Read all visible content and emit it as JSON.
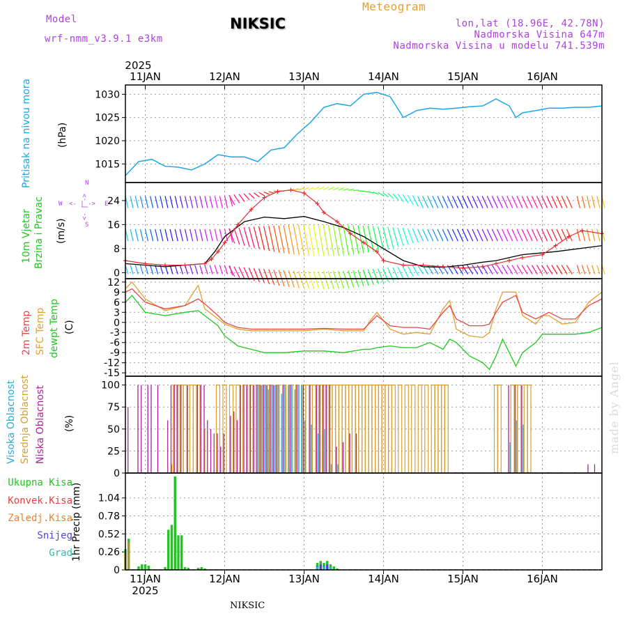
{
  "header": {
    "model_label": "Model",
    "model_name": "wrf-nmm_v3.9.1 e3km",
    "title": "NIKSIC",
    "meteogram_label": "Meteogram",
    "coords": "lon,lat (18.96E, 42.78N)",
    "elevation": "Nadmorska Visina 647m",
    "model_elevation": "Nadmorska Visina u modelu 741.539m"
  },
  "footer": {
    "station": "NIKSIC"
  },
  "signature": "made by Angel",
  "time_axis": {
    "year": "2025",
    "labels": [
      "11JAN",
      "12JAN",
      "13JAN",
      "14JAN",
      "15JAN",
      "16JAN"
    ],
    "start_hour": 0,
    "end_hour": 144
  },
  "colors": {
    "pressure": "#1aa7e6",
    "temp": "#e84545",
    "sfc_temp": "#e0a030",
    "dewpt": "#1ec81e",
    "cl_high": "#2aaad8",
    "cl_mid": "#d6a030",
    "cl_low": "#b0209a",
    "rain_total": "#22c422",
    "rain_conv": "#e84040",
    "rain_frozen": "#f08030",
    "snow": "#4848d8",
    "graupel": "#20c0b0",
    "gust": "#e03030",
    "wind": "#000000",
    "dir_label": "#b040e0"
  },
  "labels": {
    "pressure_panel": [
      "Pritisak na nivou mora"
    ],
    "pressure_unit": "(hPa)",
    "wind_panel": [
      "10m Vjetar",
      "Brzina i Pravac"
    ],
    "wind_unit": "(m/s)",
    "dir_compass": [
      "W",
      "<- | ->",
      "E",
      "N",
      "<- | ->",
      "S"
    ],
    "temp_panel": [
      "2m Temp",
      "SFC Temp",
      "dewpt Temp"
    ],
    "temp_unit": "(C)",
    "cloud_panel": [
      "Visoka Oblacnost",
      "Srednja Oblacnost",
      "Niska Oblacnost"
    ],
    "cloud_unit": "(%)",
    "precip_axis": "1hr Precip (mm)",
    "precip_legend": [
      "Ukupna Kisa",
      "Konvek.Kisa",
      "Zaledj.Kisa",
      "Snijeg",
      "Grad"
    ]
  },
  "chart_data": [
    {
      "type": "line",
      "title": "Pritisak na nivou mora",
      "ylabel": "(hPa)",
      "ylim": [
        1011,
        1032
      ],
      "yticks": [
        1015,
        1020,
        1025,
        1030
      ],
      "x": [
        0,
        2,
        4,
        8,
        12,
        16,
        20,
        24,
        28,
        32,
        36,
        40,
        44,
        48,
        52,
        56,
        60,
        64,
        68,
        72,
        76,
        80,
        84,
        88,
        92,
        96,
        100,
        104,
        108,
        112,
        116,
        118,
        120,
        124,
        128,
        132,
        136,
        140,
        144
      ],
      "values": [
        1012.5,
        1014,
        1015.5,
        1016,
        1014.5,
        1014.3,
        1013.7,
        1015,
        1017,
        1016.5,
        1016.5,
        1015.5,
        1018,
        1018.5,
        1021.5,
        1024,
        1027.2,
        1028,
        1027.5,
        1030,
        1030.4,
        1029.5,
        1025,
        1026.5,
        1027,
        1026.8,
        1027,
        1027.3,
        1027.5,
        1029,
        1027.5,
        1025,
        1026,
        1026.5,
        1027,
        1027,
        1027.2,
        1027.2,
        1027.5
      ]
    },
    {
      "type": "line",
      "title": "10m Vjetar Brzina i Pravac",
      "ylabel": "(m/s)",
      "ylim": [
        -2,
        30
      ],
      "yticks": [
        0,
        8,
        16,
        24
      ],
      "series": [
        {
          "name": "10m wind",
          "x": [
            0,
            6,
            12,
            18,
            24,
            27,
            30,
            36,
            42,
            48,
            54,
            60,
            66,
            72,
            78,
            84,
            90,
            96,
            102,
            108,
            112,
            116,
            120,
            130,
            144
          ],
          "values": [
            3,
            2.5,
            2,
            2.5,
            3,
            7,
            12,
            17,
            18.5,
            18,
            18.7,
            17,
            15,
            12,
            8,
            4,
            2,
            1.8,
            2.5,
            3.5,
            4,
            5,
            6,
            7,
            9
          ]
        },
        {
          "name": "gust",
          "x": [
            0,
            6,
            12,
            18,
            24,
            26,
            28,
            30,
            34,
            38,
            42,
            46,
            50,
            54,
            58,
            60,
            64,
            68,
            72,
            76,
            78,
            84,
            90,
            96,
            102,
            108,
            112,
            116,
            120,
            126,
            130,
            134,
            138,
            144
          ],
          "values": [
            4,
            3,
            2.5,
            2.5,
            3,
            4.5,
            7,
            10,
            16,
            21,
            25,
            27,
            27.5,
            26.5,
            23,
            20,
            17,
            13,
            10,
            7,
            4,
            2.5,
            2.5,
            2,
            1.5,
            2,
            3,
            4,
            5,
            6,
            9,
            12,
            14,
            13
          ]
        }
      ]
    },
    {
      "type": "line",
      "title": "2m Temp / SFC Temp / dewpt Temp",
      "ylabel": "(C)",
      "ylim": [
        -16,
        13
      ],
      "yticks": [
        12,
        9,
        6,
        3,
        0,
        -3,
        -6,
        -9,
        -12,
        -15
      ],
      "x": [
        0,
        2,
        6,
        12,
        18,
        22,
        24,
        28,
        30,
        34,
        38,
        42,
        48,
        54,
        60,
        66,
        72,
        74,
        76,
        80,
        84,
        88,
        92,
        96,
        98,
        100,
        104,
        108,
        110,
        112,
        114,
        118,
        120,
        124,
        126,
        128,
        132,
        136,
        140,
        144
      ],
      "series": [
        {
          "name": "2m Temp",
          "values": [
            9,
            10,
            6,
            4,
            5,
            7,
            5.5,
            2,
            0,
            -1.5,
            -2,
            -2,
            -2,
            -2,
            -1.8,
            -2,
            -2,
            0,
            2,
            -1,
            -1.5,
            -1.5,
            -2,
            3,
            5,
            1,
            -1,
            -1,
            -0.5,
            3,
            6,
            8,
            3,
            1,
            2,
            3,
            1,
            1,
            5,
            7
          ]
        },
        {
          "name": "SFC Temp",
          "values": [
            10,
            12,
            7,
            3.5,
            5,
            11,
            4,
            1,
            -0.5,
            -2,
            -2.5,
            -2.5,
            -2.5,
            -2.5,
            -2,
            -2.5,
            -2.5,
            0.5,
            3,
            -2,
            -3.5,
            -3,
            -3.5,
            4,
            6.5,
            -2,
            -4,
            -4.5,
            -3,
            4,
            9,
            9,
            2,
            -0.5,
            2,
            2,
            -0.5,
            0,
            6,
            9
          ]
        },
        {
          "name": "dewpt Temp",
          "values": [
            6,
            8,
            3,
            2,
            3,
            3.5,
            2,
            -1,
            -4,
            -7,
            -8,
            -9,
            -9,
            -8.5,
            -8.5,
            -9,
            -8,
            -8,
            -7.5,
            -7,
            -7.5,
            -7.5,
            -6,
            -8,
            -5,
            -6,
            -10,
            -12,
            -14,
            -10,
            -5,
            -13,
            -9,
            -6,
            -3.5,
            -3.5,
            -3.5,
            -3.5,
            -3,
            -1.5
          ]
        }
      ]
    },
    {
      "type": "bar",
      "title": "Oblacnost",
      "ylabel": "(%)",
      "ylim": [
        0,
        110
      ],
      "yticks": [
        0,
        25,
        50,
        75,
        100
      ],
      "series": [
        {
          "name": "Visoka Oblacnost",
          "x": [
            20,
            28,
            40,
            41,
            42,
            43,
            44,
            45,
            46,
            47,
            48,
            49,
            50,
            51,
            52,
            53,
            54,
            56,
            58,
            60,
            62,
            64,
            66,
            70,
            116,
            118,
            120,
            130
          ],
          "values": [
            0,
            0,
            100,
            100,
            100,
            95,
            100,
            100,
            100,
            90,
            100,
            100,
            100,
            95,
            100,
            100,
            60,
            55,
            45,
            50,
            10,
            10,
            0,
            0,
            35,
            60,
            55,
            0
          ]
        },
        {
          "name": "Srednja Oblacnost",
          "x": [
            12,
            14,
            15,
            16,
            17,
            18,
            20,
            21,
            22,
            24,
            28,
            30,
            32,
            34,
            36,
            38,
            40,
            42,
            44,
            46,
            48,
            50,
            52,
            54,
            55,
            56,
            57,
            58,
            59,
            60,
            61,
            62,
            63,
            64,
            65,
            66,
            67,
            68,
            69,
            70,
            71,
            72,
            73,
            74,
            75,
            76,
            77,
            78,
            79,
            80,
            81,
            83,
            85,
            87,
            89,
            91,
            93,
            94,
            95,
            96,
            97,
            112,
            113,
            117,
            118,
            119,
            121,
            122
          ],
          "values": [
            0,
            10,
            100,
            100,
            100,
            100,
            100,
            100,
            100,
            50,
            100,
            100,
            100,
            100,
            100,
            100,
            100,
            100,
            100,
            100,
            100,
            100,
            100,
            100,
            100,
            100,
            100,
            100,
            100,
            100,
            100,
            100,
            100,
            100,
            100,
            100,
            100,
            100,
            100,
            100,
            100,
            100,
            100,
            100,
            100,
            100,
            100,
            100,
            100,
            100,
            100,
            100,
            100,
            100,
            100,
            100,
            100,
            100,
            100,
            100,
            100,
            100,
            100,
            100,
            100,
            100,
            100,
            100
          ]
        },
        {
          "name": "Niska Oblacnost",
          "x": [
            1,
            4,
            5,
            7,
            8,
            10,
            13,
            14,
            15,
            16,
            17,
            19,
            22,
            23,
            24,
            25,
            26,
            27,
            28,
            29,
            30,
            32,
            33,
            34,
            35,
            36,
            37,
            38,
            39,
            40,
            41,
            42,
            43,
            44,
            45,
            46,
            48,
            50,
            52,
            54,
            56,
            58,
            59,
            60,
            61,
            62,
            64,
            66,
            68,
            70,
            100,
            102,
            112,
            113,
            116,
            118,
            120,
            122,
            124,
            128,
            132,
            136,
            140,
            142
          ],
          "values": [
            75,
            100,
            100,
            100,
            100,
            100,
            60,
            100,
            100,
            100,
            100,
            100,
            100,
            100,
            100,
            60,
            50,
            45,
            45,
            30,
            45,
            65,
            70,
            60,
            100,
            100,
            100,
            100,
            100,
            100,
            100,
            100,
            100,
            100,
            100,
            100,
            100,
            100,
            100,
            100,
            100,
            100,
            100,
            100,
            100,
            100,
            30,
            35,
            45,
            45,
            1,
            1,
            1,
            1,
            100,
            100,
            100,
            1,
            1,
            1,
            1,
            1,
            10,
            10
          ]
        }
      ]
    },
    {
      "type": "bar",
      "title": "1hr Precip (mm)",
      "ylabel": "1hr Precip (mm)",
      "ylim": [
        0,
        1.4
      ],
      "yticks": [
        0,
        0.26,
        0.52,
        0.78,
        1.04
      ],
      "series": [
        {
          "name": "Ukupna Kisa",
          "x": [
            0,
            1,
            2,
            3,
            4,
            5,
            6,
            7,
            8,
            9,
            10,
            11,
            12,
            13,
            14,
            15,
            16,
            17,
            18,
            19,
            20,
            21,
            22,
            23,
            24,
            58,
            59,
            60,
            61,
            62,
            63,
            64
          ],
          "values": [
            0.3,
            0.45,
            0,
            0,
            0.05,
            0.08,
            0.08,
            0.06,
            0,
            0,
            0,
            0,
            0.04,
            0.58,
            0.65,
            1.35,
            0.5,
            0.5,
            0.04,
            0.03,
            0,
            0,
            0.03,
            0.04,
            0.02,
            0.1,
            0.13,
            0.1,
            0.13,
            0.08,
            0.05,
            0.02
          ]
        },
        {
          "name": "Konvek.Kisa",
          "x": [],
          "values": []
        },
        {
          "name": "Zaledj.Kisa",
          "x": [
            0,
            1
          ],
          "values": [
            0.25,
            0.4
          ]
        },
        {
          "name": "Snijeg",
          "x": [
            58,
            59,
            60,
            61,
            62
          ],
          "values": [
            0.06,
            0.08,
            0.06,
            0.08,
            0.04
          ]
        },
        {
          "name": "Grad",
          "x": [
            58,
            60,
            62
          ],
          "values": [
            0.05,
            0.05,
            0.04
          ]
        }
      ]
    }
  ]
}
